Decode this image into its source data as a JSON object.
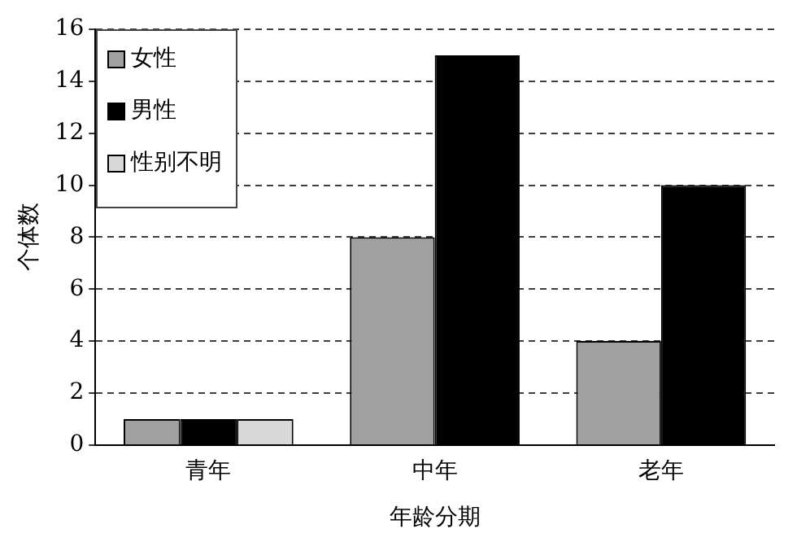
{
  "chart_data": {
    "type": "bar",
    "xlabel": "年龄分期",
    "ylabel": "个体数",
    "categories": [
      "青年",
      "中年",
      "老年"
    ],
    "series": [
      {
        "name": "女性",
        "color": "#a0a0a0",
        "values": [
          1,
          8,
          4
        ]
      },
      {
        "name": "男性",
        "color": "#000000",
        "values": [
          1,
          15,
          10
        ]
      },
      {
        "name": "性别不明",
        "color": "#d8d8d8",
        "values": [
          1,
          null,
          null
        ]
      }
    ],
    "ylim": [
      0,
      16
    ],
    "yticks": [
      0,
      2,
      4,
      6,
      8,
      10,
      12,
      14,
      16
    ],
    "grid": "y",
    "line_style": "dashed",
    "legend": "top left"
  }
}
